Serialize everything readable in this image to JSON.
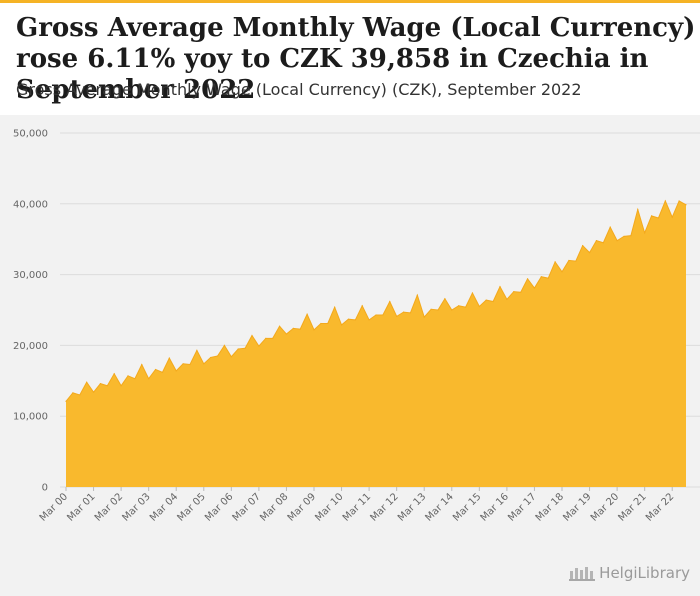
{
  "header": {
    "title": "Gross Average Monthly Wage (Local Currency) rose 6.11% yoy to CZK 39,858 in Czechia in September 2022",
    "subtitle": "Gross Average Monthly Wage (Local Currency) (CZK), September 2022"
  },
  "logo": {
    "text": "HelgiLibrary"
  },
  "colors": {
    "accent": "#f5b325",
    "area": "#f9b92d",
    "background": "#f2f2f2"
  },
  "chart_data": {
    "type": "area",
    "title": "Gross Average Monthly Wage (Local Currency) (CZK), September 2022",
    "xlabel": "",
    "ylabel": "",
    "ylim": [
      0,
      50000
    ],
    "grid": true,
    "yticks": [
      0,
      10000,
      20000,
      30000,
      40000,
      50000
    ],
    "ytick_labels": [
      "0",
      "10,000",
      "20,000",
      "30,000",
      "40,000",
      "50,000"
    ],
    "xtick_labels": [
      "Mar 00",
      "Mar 01",
      "Mar 02",
      "Mar 03",
      "Mar 04",
      "Mar 05",
      "Mar 06",
      "Mar 07",
      "Mar 08",
      "Mar 09",
      "Mar 10",
      "Mar 11",
      "Mar 12",
      "Mar 13",
      "Mar 14",
      "Mar 15",
      "Mar 16",
      "Mar 17",
      "Mar 18",
      "Mar 19",
      "Mar 20",
      "Mar 21",
      "Mar 22"
    ],
    "x_start": "Mar 00",
    "x_end": "Sep 22",
    "frequency": "quarterly",
    "series": [
      {
        "name": "Gross Average Monthly Wage (CZK)",
        "values": [
          12100,
          13300,
          13000,
          14800,
          13400,
          14600,
          14300,
          16000,
          14300,
          15700,
          15300,
          17300,
          15300,
          16600,
          16200,
          18200,
          16400,
          17400,
          17300,
          19300,
          17400,
          18300,
          18500,
          20000,
          18400,
          19500,
          19600,
          21400,
          19900,
          21000,
          21000,
          22700,
          21600,
          22400,
          22300,
          24400,
          22200,
          23100,
          23100,
          25400,
          22900,
          23700,
          23600,
          25600,
          23600,
          24300,
          24300,
          26200,
          24100,
          24700,
          24600,
          27100,
          24000,
          25100,
          25000,
          26600,
          25000,
          25600,
          25400,
          27400,
          25500,
          26400,
          26200,
          28300,
          26500,
          27600,
          27500,
          29400,
          28100,
          29700,
          29500,
          31800,
          30400,
          32000,
          31900,
          34100,
          33100,
          34800,
          34500,
          36700,
          34800,
          35400,
          35500,
          39200,
          35900,
          38300,
          38000,
          40400,
          38100,
          40400,
          39858
        ]
      }
    ]
  }
}
